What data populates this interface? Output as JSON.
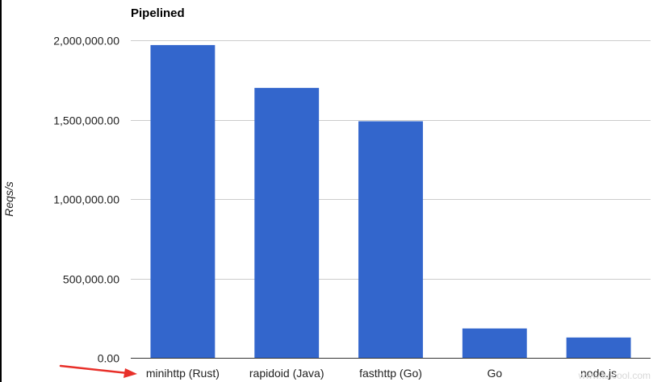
{
  "chart_data": {
    "type": "bar",
    "title": "Pipelined",
    "xlabel": "",
    "ylabel": "Reqs/s",
    "categories": [
      "minihttp (Rust)",
      "rapidoid (Java)",
      "fasthttp (Go)",
      "Go",
      "node.js"
    ],
    "values": [
      1970000,
      1700000,
      1490000,
      185000,
      128000
    ],
    "ylim": [
      0,
      2000000
    ],
    "yticks": [
      0,
      500000,
      1000000,
      1500000,
      2000000
    ],
    "ytick_labels": [
      "0.00",
      "500,000.00",
      "1,000,000.00",
      "1,500,000.00",
      "2,000,000.00"
    ],
    "grid": true,
    "legend": "none",
    "bar_color": "#3366cc"
  },
  "annotations": {
    "arrow_color": "#e8302a",
    "watermark_text": "www.tuicool.com"
  }
}
